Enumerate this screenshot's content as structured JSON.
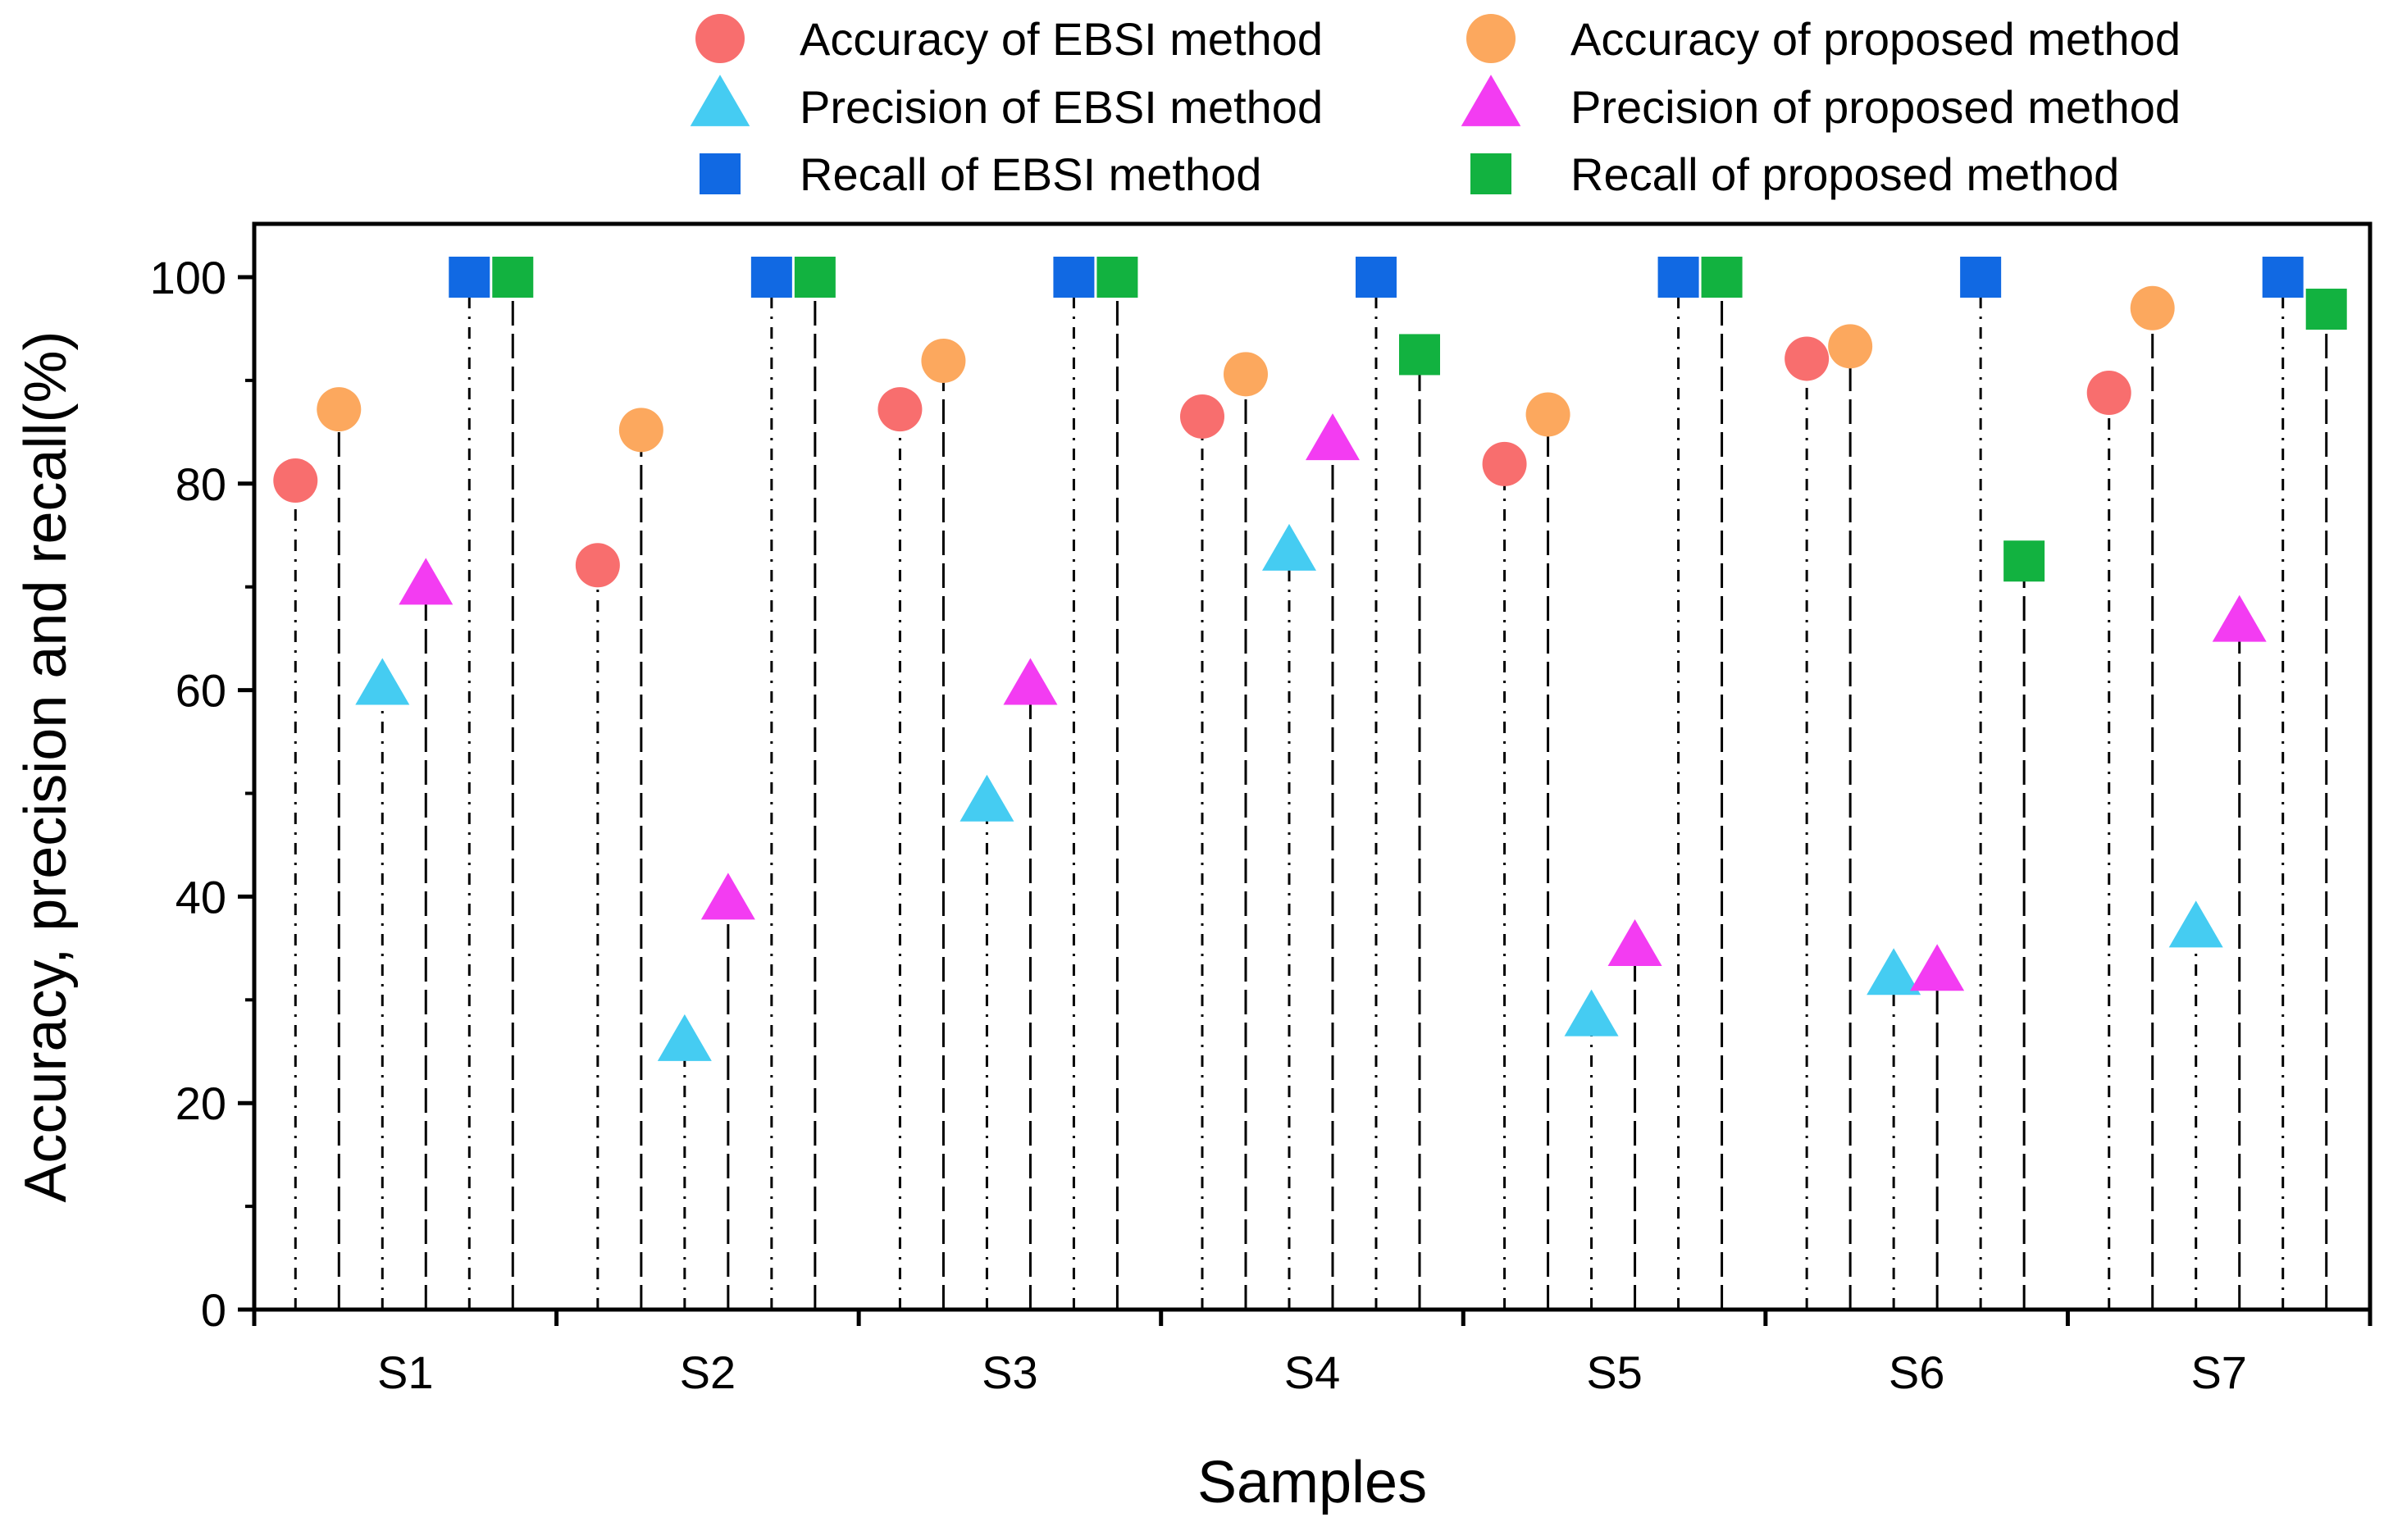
{
  "chart_data": {
    "type": "scatter",
    "subtype": "drop-line scatter",
    "title": "",
    "xlabel": "Samples",
    "ylabel": "Accuracy, precision and recall(%)",
    "ylim": [
      0,
      100
    ],
    "yticks": [
      0,
      20,
      40,
      60,
      80,
      100
    ],
    "ytick_labels": [
      "0",
      "20",
      "40",
      "60",
      "80",
      "100"
    ],
    "grid": false,
    "legend_position": "top",
    "categories": [
      "S1",
      "S2",
      "S3",
      "S4",
      "S5",
      "S6",
      "S7"
    ],
    "series": [
      {
        "name": "Accuracy of EBSI method",
        "marker": "circle",
        "color": "#F86E6E",
        "values": [
          80.3,
          72.1,
          87.2,
          86.5,
          81.9,
          92.1,
          88.8
        ]
      },
      {
        "name": "Accuracy of proposed method",
        "marker": "circle",
        "color": "#FCA85E",
        "values": [
          87.2,
          85.2,
          91.9,
          90.6,
          86.7,
          93.3,
          97.0
        ]
      },
      {
        "name": "Precision of EBSI method",
        "marker": "triangle",
        "color": "#45CCF2",
        "values": [
          60.3,
          25.8,
          49.0,
          73.3,
          28.2,
          32.2,
          36.8
        ]
      },
      {
        "name": "Precision of proposed method",
        "marker": "triangle",
        "color": "#F33CF2",
        "values": [
          70.0,
          39.5,
          60.3,
          84.0,
          35.0,
          32.6,
          66.4
        ]
      },
      {
        "name": "Recall of EBSI method",
        "marker": "square",
        "color": "#1169E3",
        "values": [
          100,
          100,
          100,
          100,
          100,
          100,
          100
        ]
      },
      {
        "name": "Recall of proposed method",
        "marker": "square",
        "color": "#12B240",
        "values": [
          100,
          100,
          100,
          92.5,
          100,
          72.5,
          96.9
        ]
      }
    ]
  }
}
